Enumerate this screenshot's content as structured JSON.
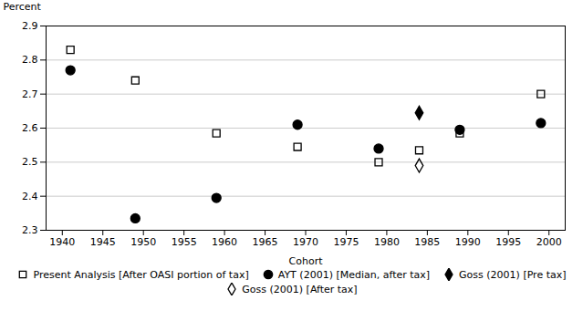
{
  "chart_data": {
    "type": "scatter",
    "xlabel": "Cohort",
    "ylabel": "Percent",
    "xlim": [
      1938,
      2002
    ],
    "xticks": [
      1940,
      1945,
      1950,
      1955,
      1960,
      1965,
      1970,
      1975,
      1980,
      1985,
      1990,
      1995,
      2000
    ],
    "ylim": [
      2.3,
      2.9
    ],
    "yticks": [
      2.3,
      2.4,
      2.5,
      2.6,
      2.7,
      2.8,
      2.9
    ],
    "grid": true,
    "legend": "bottom",
    "series": [
      {
        "name": "Present Analysis [After OASI portion of tax]",
        "marker": "square-open",
        "color": "#000000",
        "x": [
          1941,
          1949,
          1959,
          1969,
          1979,
          1984,
          1989,
          1999
        ],
        "values": [
          2.83,
          2.74,
          2.585,
          2.545,
          2.5,
          2.535,
          2.585,
          2.7
        ]
      },
      {
        "name": "AYT (2001) [Median, after tax]",
        "marker": "circle",
        "color": "#000000",
        "x": [
          1941,
          1949,
          1959,
          1969,
          1979,
          1989,
          1999
        ],
        "values": [
          2.77,
          2.335,
          2.395,
          2.61,
          2.54,
          2.595,
          2.615
        ]
      },
      {
        "name": "Goss (2001) [Pre tax]",
        "marker": "diamond",
        "color": "#000000",
        "x": [
          1984
        ],
        "values": [
          2.645
        ]
      },
      {
        "name": "Goss (2001) [After tax]",
        "marker": "diamond-open",
        "color": "#000000",
        "x": [
          1984
        ],
        "values": [
          2.49
        ]
      }
    ]
  }
}
